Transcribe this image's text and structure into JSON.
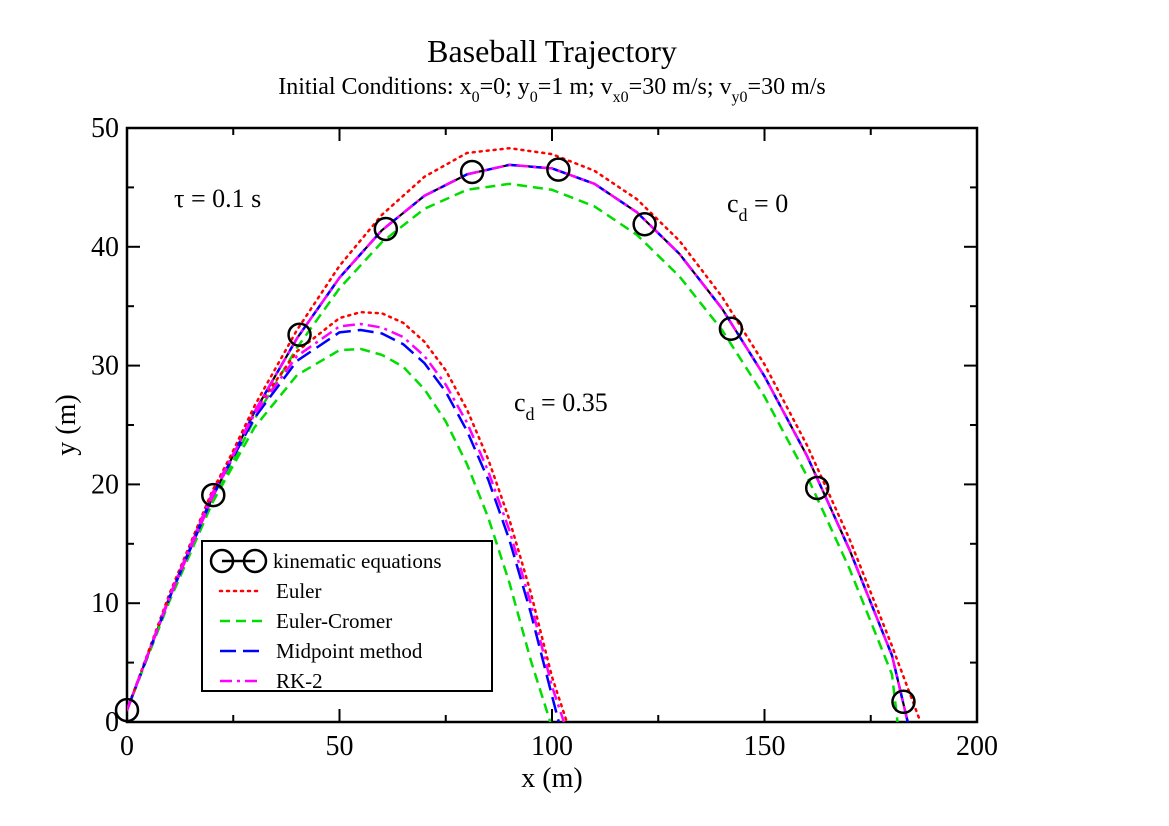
{
  "chart_data": {
    "type": "line",
    "title": "Baseball Trajectory",
    "subtitle": {
      "prefix": "Initial Conditions: x",
      "s1": "0",
      "t1": "=0; y",
      "s2": "0",
      "t2": "=1 m; v",
      "s3": "x0",
      "t3": "=30 m/s; v",
      "s4": "y0",
      "t4": "=30 m/s"
    },
    "xlabel": "x (m)",
    "ylabel": "y (m)",
    "xlim": [
      0,
      200
    ],
    "ylim": [
      0,
      50
    ],
    "x_ticks": [
      0,
      50,
      100,
      150,
      200
    ],
    "y_ticks": [
      0,
      10,
      20,
      30,
      40,
      50
    ],
    "grid": false,
    "legend_position": "bottom-left",
    "annotations": {
      "tau": "τ = 0.1 s",
      "cd0_main": "c",
      "cd0_sub": "d",
      "cd0_value": " = 0",
      "cd35_main": "c",
      "cd35_sub": "d",
      "cd35_value": " = 0.35"
    },
    "colors": {
      "kinematic": "#000000",
      "euler": "#ff0000",
      "euler_cromer": "#00dd00",
      "midpoint": "#0000ff",
      "rk2": "#ff00ff"
    },
    "series": [
      {
        "name": "kinematic equations",
        "kind": "markers",
        "x": [
          0,
          20.3,
          40.6,
          60.9,
          81.2,
          101.5,
          121.8,
          142.1,
          162.4,
          182.7
        ],
        "y": [
          1,
          19.1,
          32.6,
          41.5,
          46.3,
          46.5,
          41.9,
          33.1,
          19.7,
          1.7
        ]
      },
      {
        "name": "kinematic equations",
        "kind": "line",
        "key": "kinematic",
        "x": [
          0,
          10,
          20,
          30,
          40,
          50,
          60,
          70,
          80,
          90,
          100,
          110,
          120,
          130,
          140,
          150,
          160,
          170,
          180,
          183.7
        ],
        "y": [
          1,
          10.45,
          18.82,
          26.1,
          32.3,
          37.4,
          41.4,
          44.3,
          46.1,
          46.9,
          46.6,
          45.3,
          42.9,
          39.4,
          34.8,
          29.1,
          22.4,
          14.5,
          5.6,
          0
        ]
      },
      {
        "name": "Euler",
        "key": "euler",
        "x": [
          0,
          10,
          20,
          30,
          40,
          50,
          60,
          70,
          80,
          90,
          100,
          110,
          120,
          130,
          140,
          150,
          160,
          170,
          180,
          186.7
        ],
        "y": [
          1,
          10.6,
          19.1,
          26.6,
          33.0,
          38.4,
          42.7,
          45.9,
          47.9,
          48.3,
          47.8,
          46.4,
          44.0,
          40.5,
          35.8,
          30.1,
          23.3,
          15.4,
          6.4,
          0
        ]
      },
      {
        "name": "Euler-Cromer",
        "key": "euler_cromer",
        "x": [
          0,
          10,
          20,
          30,
          40,
          50,
          60,
          70,
          80,
          90,
          100,
          110,
          120,
          130,
          140,
          150,
          160,
          170,
          180,
          181.3
        ],
        "y": [
          1,
          10.2,
          18.4,
          25.5,
          31.5,
          36.5,
          40.4,
          43.2,
          44.8,
          45.3,
          44.8,
          43.4,
          41.0,
          37.5,
          33.0,
          27.4,
          20.7,
          12.9,
          4.0,
          0
        ]
      },
      {
        "name": "Midpoint method",
        "key": "midpoint",
        "x": [
          0,
          10,
          20,
          30,
          40,
          50,
          60,
          70,
          80,
          90,
          100,
          110,
          120,
          130,
          140,
          150,
          160,
          170,
          180,
          183.7
        ],
        "y": [
          1,
          10.45,
          18.82,
          26.1,
          32.3,
          37.4,
          41.4,
          44.3,
          46.1,
          46.9,
          46.6,
          45.3,
          42.9,
          39.4,
          34.8,
          29.1,
          22.4,
          14.5,
          5.6,
          0
        ]
      },
      {
        "name": "RK-2",
        "key": "rk2",
        "x": [
          0,
          10,
          20,
          30,
          40,
          50,
          60,
          70,
          80,
          90,
          100,
          110,
          120,
          130,
          140,
          150,
          160,
          170,
          180,
          183.7
        ],
        "y": [
          1,
          10.45,
          18.82,
          26.1,
          32.3,
          37.4,
          41.4,
          44.3,
          46.1,
          46.9,
          46.6,
          45.3,
          42.9,
          39.4,
          34.8,
          29.1,
          22.4,
          14.5,
          5.6,
          0
        ]
      },
      {
        "name": "Euler",
        "key": "euler",
        "group": "cd_0.35",
        "x": [
          0,
          10,
          20,
          30,
          40,
          50,
          55,
          60,
          65,
          70,
          75,
          80,
          85,
          90,
          95,
          100,
          103.5
        ],
        "y": [
          1,
          10.8,
          19.4,
          26.2,
          31.2,
          34.0,
          34.5,
          34.4,
          33.6,
          32.0,
          29.6,
          26.3,
          22.1,
          17.0,
          10.9,
          3.8,
          0
        ]
      },
      {
        "name": "Euler-Cromer",
        "key": "euler_cromer",
        "group": "cd_0.35",
        "x": [
          0,
          10,
          20,
          30,
          40,
          50,
          55,
          60,
          65,
          70,
          75,
          80,
          85,
          90,
          95,
          99.6
        ],
        "y": [
          1,
          10.2,
          18.4,
          24.8,
          29.2,
          31.3,
          31.4,
          30.9,
          29.9,
          28.0,
          25.3,
          21.7,
          17.2,
          11.7,
          5.2,
          0
        ]
      },
      {
        "name": "Midpoint method",
        "key": "midpoint",
        "group": "cd_0.35",
        "x": [
          0,
          10,
          20,
          30,
          40,
          50,
          55,
          60,
          65,
          70,
          75,
          80,
          85,
          90,
          95,
          100,
          101.6
        ],
        "y": [
          1,
          10.5,
          19.0,
          25.6,
          30.4,
          32.8,
          33.0,
          32.7,
          31.8,
          30.2,
          27.8,
          24.5,
          20.4,
          15.3,
          9.2,
          2.2,
          0
        ]
      },
      {
        "name": "RK-2",
        "key": "rk2",
        "group": "cd_0.35",
        "x": [
          0,
          10,
          20,
          30,
          40,
          50,
          55,
          60,
          65,
          70,
          75,
          80,
          85,
          90,
          95,
          100,
          102.8
        ],
        "y": [
          1,
          10.6,
          19.2,
          25.9,
          30.8,
          33.3,
          33.5,
          33.2,
          32.4,
          30.8,
          28.4,
          25.2,
          21.1,
          16.1,
          10.0,
          3.0,
          0
        ]
      }
    ],
    "legend": [
      {
        "label": "kinematic equations",
        "key": "kinematic",
        "style": "marker"
      },
      {
        "label": "Euler",
        "key": "euler",
        "style": "dotted"
      },
      {
        "label": "Euler-Cromer",
        "key": "euler_cromer",
        "style": "dashed"
      },
      {
        "label": "Midpoint method",
        "key": "midpoint",
        "style": "longdash"
      },
      {
        "label": "RK-2",
        "key": "rk2",
        "style": "dashdot"
      }
    ]
  }
}
